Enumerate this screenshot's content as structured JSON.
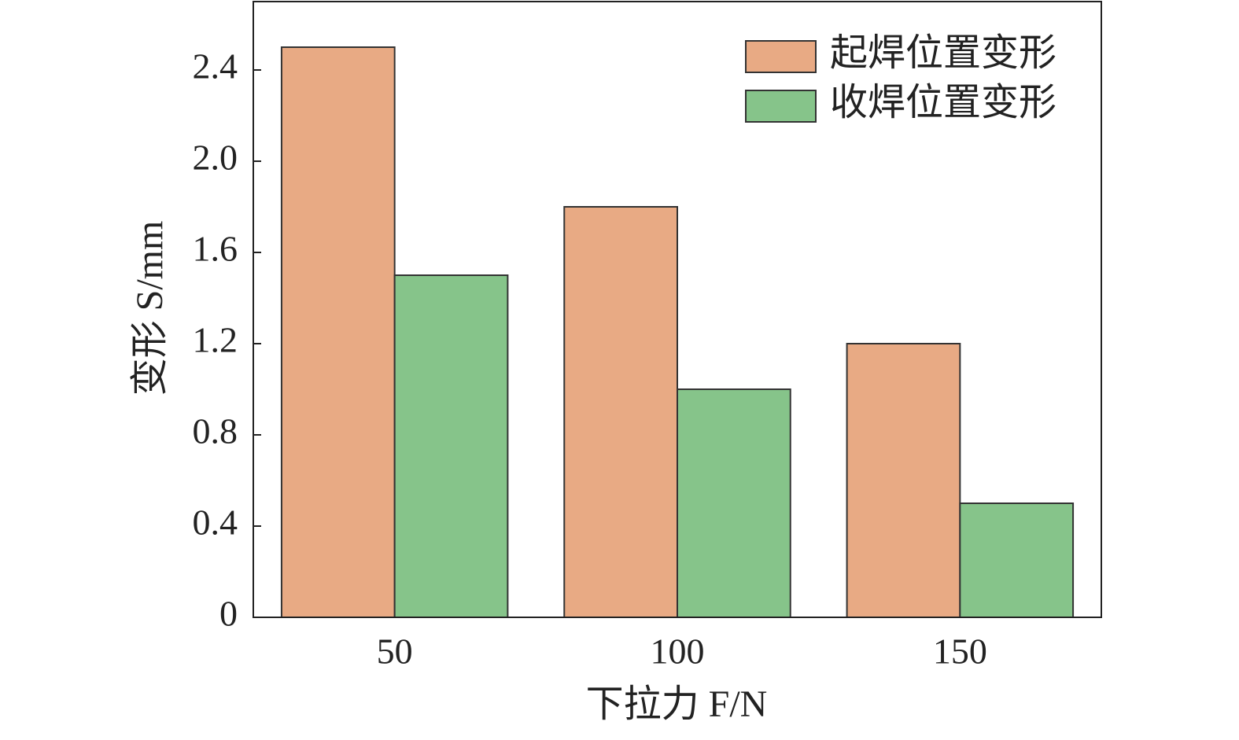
{
  "chart_data": {
    "type": "bar",
    "x_label": "下拉力 F/N",
    "y_label": "变形 S/mm",
    "categories": [
      "50",
      "100",
      "150"
    ],
    "series": [
      {
        "name": "起焊位置变形",
        "color": "#e8aa84",
        "values": [
          2.5,
          1.8,
          1.2
        ]
      },
      {
        "name": "收焊位置变形",
        "color": "#86c48a",
        "values": [
          1.5,
          1.0,
          0.5
        ]
      }
    ],
    "ylim": [
      0,
      2.7
    ],
    "yticks": [
      0,
      0.4,
      0.8,
      1.2,
      1.6,
      {
        "value": 2,
        "label": "2.0"
      },
      2.4
    ],
    "legend": "upper right",
    "grid": false
  }
}
